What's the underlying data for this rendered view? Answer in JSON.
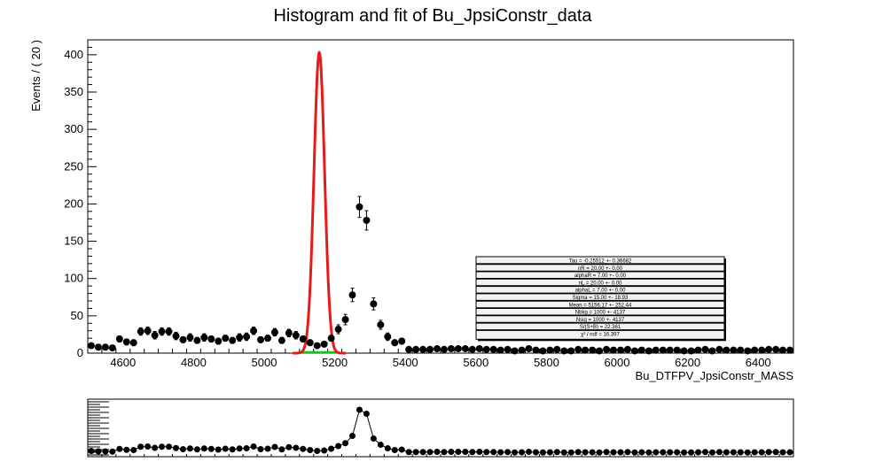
{
  "chart_data": [
    {
      "type": "scatter",
      "title": "Histogram and fit of Bu_JpsiConstr_data",
      "xlabel": "Bu_DTFPV_JpsiConstr_MASS",
      "ylabel": "Events / ( 20 )",
      "xlim": [
        4500,
        6500
      ],
      "ylim": [
        0,
        420
      ],
      "xticks": [
        4600,
        4800,
        5000,
        5200,
        5400,
        5600,
        5800,
        6000,
        6200,
        6400
      ],
      "yticks": [
        0,
        50,
        100,
        150,
        200,
        250,
        300,
        350,
        400
      ],
      "grid": false,
      "series": [
        {
          "kind": "points-with-errors",
          "x": [
            4510,
            4530,
            4550,
            4570,
            4590,
            4610,
            4630,
            4650,
            4670,
            4690,
            4710,
            4730,
            4750,
            4770,
            4790,
            4810,
            4830,
            4850,
            4870,
            4890,
            4910,
            4930,
            4950,
            4970,
            4990,
            5010,
            5030,
            5050,
            5070,
            5090,
            5110,
            5130,
            5150,
            5170,
            5190,
            5210,
            5230,
            5250,
            5270,
            5290,
            5310,
            5330,
            5350,
            5370,
            5390,
            5410,
            5430,
            5450,
            5470,
            5490,
            5510,
            5530,
            5550,
            5570,
            5590,
            5610,
            5630,
            5650,
            5670,
            5690,
            5710,
            5730,
            5750,
            5770,
            5790,
            5810,
            5830,
            5850,
            5870,
            5890,
            5910,
            5930,
            5950,
            5970,
            5990,
            6010,
            6030,
            6050,
            6070,
            6090,
            6110,
            6130,
            6150,
            6170,
            6190,
            6210,
            6230,
            6250,
            6270,
            6290,
            6310,
            6330,
            6350,
            6370,
            6390,
            6410,
            6430,
            6450,
            6470,
            6490
          ],
          "y": [
            10,
            8,
            8,
            7,
            19,
            15,
            14,
            29,
            30,
            24,
            29,
            29,
            23,
            18,
            21,
            17,
            21,
            19,
            16,
            20,
            17,
            21,
            22,
            30,
            18,
            20,
            28,
            17,
            27,
            24,
            19,
            14,
            10,
            12,
            20,
            32,
            45,
            78,
            196,
            178,
            66,
            38,
            22,
            14,
            16,
            5,
            5,
            5,
            5,
            6,
            5,
            6,
            6,
            6,
            5,
            6,
            5,
            5,
            4,
            5,
            3,
            4,
            6,
            4,
            3,
            4,
            5,
            3,
            3,
            5,
            4,
            4,
            3,
            5,
            4,
            4,
            5,
            3,
            4,
            3,
            4,
            4,
            4,
            4,
            3,
            3,
            4,
            5,
            3,
            5,
            4,
            4,
            4,
            3,
            4,
            4,
            5,
            5,
            4,
            4
          ],
          "errors": [
            3,
            3,
            3,
            3,
            4,
            4,
            4,
            5,
            5,
            5,
            5,
            5,
            5,
            4,
            5,
            4,
            5,
            4,
            4,
            4,
            4,
            5,
            5,
            5,
            4,
            4,
            5,
            4,
            5,
            5,
            4,
            4,
            3,
            3,
            4,
            6,
            7,
            9,
            14,
            13,
            8,
            6,
            5,
            4,
            4,
            2,
            2,
            2,
            2,
            2,
            2,
            2,
            2,
            2,
            2,
            2,
            2,
            2,
            2,
            2,
            2,
            2,
            2,
            2,
            2,
            2,
            2,
            2,
            2,
            2,
            2,
            2,
            2,
            2,
            2,
            2,
            2,
            2,
            2,
            2,
            2,
            2,
            2,
            2,
            2,
            2,
            2,
            2,
            2,
            2,
            2,
            2,
            2,
            2,
            2,
            2,
            2,
            2,
            2,
            2
          ],
          "color": "#000000"
        },
        {
          "kind": "fit-total",
          "model": "gaussian",
          "mean": 5156.17,
          "sigma": 15.0,
          "peak": 403,
          "baseline": 0,
          "color": "#e8191b"
        },
        {
          "kind": "fit-background",
          "level": 0,
          "x_range": [
            5100,
            5210
          ],
          "color": "#18c41e"
        }
      ],
      "stats_box": {
        "location": "lower-right",
        "lines": [
          "Tau = -0.25512 +- 0.36682",
          "nR = 20.00 +- 0.00",
          "alphaR = 7.00 +- 0.00",
          "nL = 20.00 +- 0.00",
          "alphaL = 7.00 +- 0.00",
          "Sigma = 15.00 +- 18.93",
          "Mean = 5156.17 +- 252.44",
          "Nbkg = 1000 +- 4137",
          "Nsig = 1000 +- 4137",
          "S/(S+B) = 22.361",
          "χ² / ndf = 16.397"
        ]
      }
    },
    {
      "type": "line",
      "title": "",
      "xlabel": "",
      "ylabel": "",
      "xlim": [
        4500,
        6500
      ],
      "ylim": [
        0,
        220
      ],
      "series": [
        {
          "kind": "pull-points",
          "values_from": "main",
          "color": "#000000"
        }
      ]
    }
  ]
}
